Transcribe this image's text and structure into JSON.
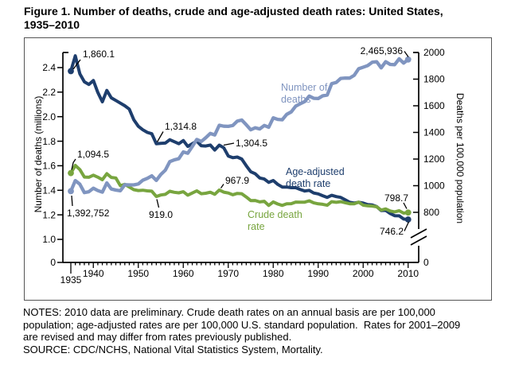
{
  "figure": {
    "title_lines": [
      "Figure 1. Number of deaths, crude and age-adjusted death rates: United States,",
      "1935–2010"
    ],
    "notes_lines": [
      "NOTES: 2010 data are preliminary. Crude death rates on an annual basis are per 100,000",
      "population; age-adjusted rates are per 100,000 U.S. standard population.  Rates for 2001–2009",
      "are revised and may differ from rates previously published."
    ],
    "source": "SOURCE: CDC/NCHS, National Vital Statistics System, Mortality."
  },
  "colors": {
    "deaths": "#8095c0",
    "age_adjusted": "#1e3e6d",
    "crude": "#78a53f",
    "axis": "#000000",
    "border": "#555555"
  },
  "series_labels": {
    "deaths": {
      "line1": "Number of",
      "line2": "deaths"
    },
    "age_adjusted": {
      "line1": "Age-adjusted",
      "line2": "death rate"
    },
    "crude": {
      "line1": "Crude death",
      "line2": "rate"
    }
  },
  "annotations": {
    "deaths_start": "1,392,752",
    "deaths_end": "2,465,936",
    "age_start": "1,860.1",
    "age_1954": "1,314.8",
    "age_1968": "1,304.5",
    "age_end": "746.2",
    "crude_start": "1,094.5",
    "crude_1954": "919.0",
    "crude_1968": "967.9",
    "crude_end": "798.7"
  },
  "chart_data": {
    "type": "line",
    "title": "Number of deaths, crude and age-adjusted death rates: United States, 1935–2010",
    "years": [
      1935,
      1936,
      1937,
      1938,
      1939,
      1940,
      1941,
      1942,
      1943,
      1944,
      1945,
      1946,
      1947,
      1948,
      1949,
      1950,
      1951,
      1952,
      1953,
      1954,
      1955,
      1956,
      1957,
      1958,
      1959,
      1960,
      1961,
      1962,
      1963,
      1964,
      1965,
      1966,
      1967,
      1968,
      1969,
      1970,
      1971,
      1972,
      1973,
      1974,
      1975,
      1976,
      1977,
      1978,
      1979,
      1980,
      1981,
      1982,
      1983,
      1984,
      1985,
      1986,
      1987,
      1988,
      1989,
      1990,
      1991,
      1992,
      1993,
      1994,
      1995,
      1996,
      1997,
      1998,
      1999,
      2000,
      2001,
      2002,
      2003,
      2004,
      2005,
      2006,
      2007,
      2008,
      2009,
      2010
    ],
    "series": [
      {
        "name": "Number of deaths",
        "axis": "left",
        "units": "millions",
        "color_key": "deaths",
        "values": [
          1.392752,
          1.479,
          1.45,
          1.381,
          1.388,
          1.417,
          1.398,
          1.385,
          1.46,
          1.411,
          1.402,
          1.396,
          1.445,
          1.444,
          1.444,
          1.452,
          1.482,
          1.497,
          1.518,
          1.481,
          1.529,
          1.564,
          1.633,
          1.648,
          1.657,
          1.712,
          1.702,
          1.757,
          1.814,
          1.798,
          1.828,
          1.863,
          1.851,
          1.93,
          1.922,
          1.921,
          1.928,
          1.964,
          1.973,
          1.934,
          1.893,
          1.909,
          1.9,
          1.928,
          1.914,
          1.99,
          1.978,
          1.975,
          2.019,
          2.039,
          2.086,
          2.105,
          2.123,
          2.168,
          2.15,
          2.148,
          2.17,
          2.176,
          2.269,
          2.279,
          2.312,
          2.315,
          2.314,
          2.337,
          2.391,
          2.403,
          2.416,
          2.443,
          2.448,
          2.398,
          2.448,
          2.426,
          2.424,
          2.472,
          2.437,
          2.465936
        ]
      },
      {
        "name": "Age-adjusted death rate",
        "axis": "right",
        "units": "deaths per 100,000 U.S. standard population",
        "color_key": "age_adjusted",
        "values": [
          1860.1,
          1975,
          1840,
          1780,
          1760,
          1790,
          1700,
          1630,
          1715,
          1660,
          1640,
          1620,
          1600,
          1575,
          1495,
          1446,
          1420,
          1400,
          1390,
          1314.8,
          1318,
          1320,
          1345,
          1330,
          1315,
          1339,
          1295,
          1315,
          1335,
          1300,
          1298,
          1305,
          1268,
          1304.5,
          1285,
          1222.6,
          1210,
          1215,
          1200,
          1150,
          1105,
          1090,
          1058,
          1050,
          1025,
          1039,
          1010,
          990,
          990,
          985,
          985,
          972,
          960,
          965,
          945,
          938.7,
          925,
          912,
          928,
          918,
          912,
          894,
          875,
          870,
          875,
          869,
          858,
          855,
          843,
          813,
          815,
          791,
          775,
          774,
          750,
          746.2
        ]
      },
      {
        "name": "Crude death rate",
        "axis": "right",
        "units": "deaths per 100,000 population",
        "color_key": "crude",
        "values": [
          1094.5,
          1152,
          1121,
          1065,
          1063,
          1079,
          1064,
          1045,
          1090,
          1062,
          1058,
          1000,
          1010,
          990,
          970,
          963.8,
          966,
          961,
          959,
          919.0,
          930.4,
          935,
          958,
          950.7,
          946,
          954.7,
          929,
          945,
          961,
          939.6,
          943,
          951,
          935.7,
          967.9,
          951.9,
          945.3,
          932,
          942,
          940,
          915,
          888.5,
          889,
          878,
          883,
          852,
          878.3,
          862.4,
          852,
          863.7,
          864.8,
          876.9,
          876.7,
          876.4,
          886.7,
          871.3,
          863.8,
          860.3,
          852.9,
          880.0,
          875.4,
          880.0,
          872.5,
          864.7,
          864.7,
          877.0,
          854,
          848.9,
          847.3,
          841.9,
          816.5,
          825.9,
          810.4,
          803.6,
          812.0,
          793.8,
          798.7
        ]
      }
    ],
    "left_axis": {
      "label": "Number of deaths (millions)",
      "ticks": [
        "0",
        "1.0",
        "1.2",
        "1.4",
        "1.6",
        "1.8",
        "2.0",
        "2.2",
        "2.4"
      ],
      "range_shown": [
        1.0,
        2.5
      ],
      "broken_axis": true
    },
    "right_axis": {
      "label": "Deaths per 100,000 population",
      "ticks": [
        "0",
        "800",
        "1000",
        "1200",
        "1400",
        "1600",
        "1800",
        "2000"
      ],
      "range_shown": [
        800,
        2030
      ],
      "broken_axis": true
    },
    "x_axis": {
      "first_year_label": "1935",
      "decade_labels": [
        "1940",
        "1950",
        "1960",
        "1970",
        "1980",
        "1990",
        "2000",
        "2010"
      ],
      "minor_tick_every_year": true
    }
  }
}
